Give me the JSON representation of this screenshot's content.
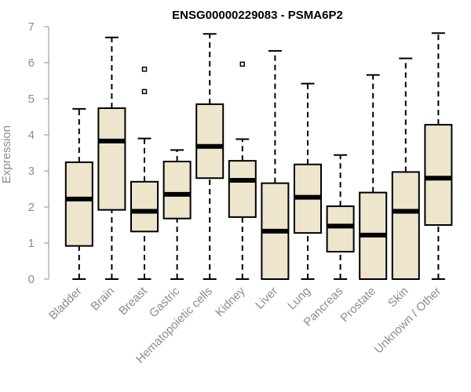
{
  "chart_data": {
    "type": "boxplot",
    "title": "ENSG00000229083 - PSMA6P2",
    "xlabel": "",
    "ylabel": "Expression",
    "ylim": [
      0,
      7
    ],
    "yticks": [
      0,
      1,
      2,
      3,
      4,
      5,
      6,
      7
    ],
    "grid": false,
    "legend": "none",
    "box_fill": "#ede6cc",
    "line_color": "#000000",
    "axis_color": "#8c8c8c",
    "categories": [
      "Bladder",
      "Brain",
      "Breast",
      "Gastric",
      "Hematopoietic cells",
      "Kidney",
      "Liver",
      "Lung",
      "Pancreas",
      "Prostate",
      "Skin",
      "Unknown / Other"
    ],
    "boxes": [
      {
        "category": "Bladder",
        "min": 0,
        "q1": 0.92,
        "median": 2.22,
        "q3": 3.24,
        "max": 4.72,
        "outliers": []
      },
      {
        "category": "Brain",
        "min": 0,
        "q1": 1.92,
        "median": 3.83,
        "q3": 4.74,
        "max": 6.7,
        "outliers": []
      },
      {
        "category": "Breast",
        "min": 0,
        "q1": 1.32,
        "median": 1.88,
        "q3": 2.7,
        "max": 3.9,
        "outliers": [
          5.2,
          5.82
        ]
      },
      {
        "category": "Gastric",
        "min": 0,
        "q1": 1.68,
        "median": 2.35,
        "q3": 3.26,
        "max": 3.58,
        "outliers": []
      },
      {
        "category": "Hematopoietic cells",
        "min": 0,
        "q1": 2.8,
        "median": 3.68,
        "q3": 4.85,
        "max": 6.8,
        "outliers": []
      },
      {
        "category": "Kidney",
        "min": 0,
        "q1": 1.72,
        "median": 2.74,
        "q3": 3.28,
        "max": 3.88,
        "outliers": [
          5.96
        ]
      },
      {
        "category": "Liver",
        "min": 0,
        "q1": 0,
        "median": 1.33,
        "q3": 2.66,
        "max": 6.33,
        "outliers": []
      },
      {
        "category": "Lung",
        "min": 0,
        "q1": 1.28,
        "median": 2.27,
        "q3": 3.18,
        "max": 5.42,
        "outliers": []
      },
      {
        "category": "Pancreas",
        "min": 0,
        "q1": 0.76,
        "median": 1.47,
        "q3": 2.02,
        "max": 3.44,
        "outliers": []
      },
      {
        "category": "Prostate",
        "min": 0,
        "q1": 0,
        "median": 1.22,
        "q3": 2.4,
        "max": 5.66,
        "outliers": []
      },
      {
        "category": "Skin",
        "min": 0,
        "q1": 0,
        "median": 1.88,
        "q3": 2.97,
        "max": 6.12,
        "outliers": []
      },
      {
        "category": "Unknown / Other",
        "min": 0,
        "q1": 1.5,
        "median": 2.8,
        "q3": 4.28,
        "max": 6.82,
        "outliers": []
      }
    ]
  }
}
